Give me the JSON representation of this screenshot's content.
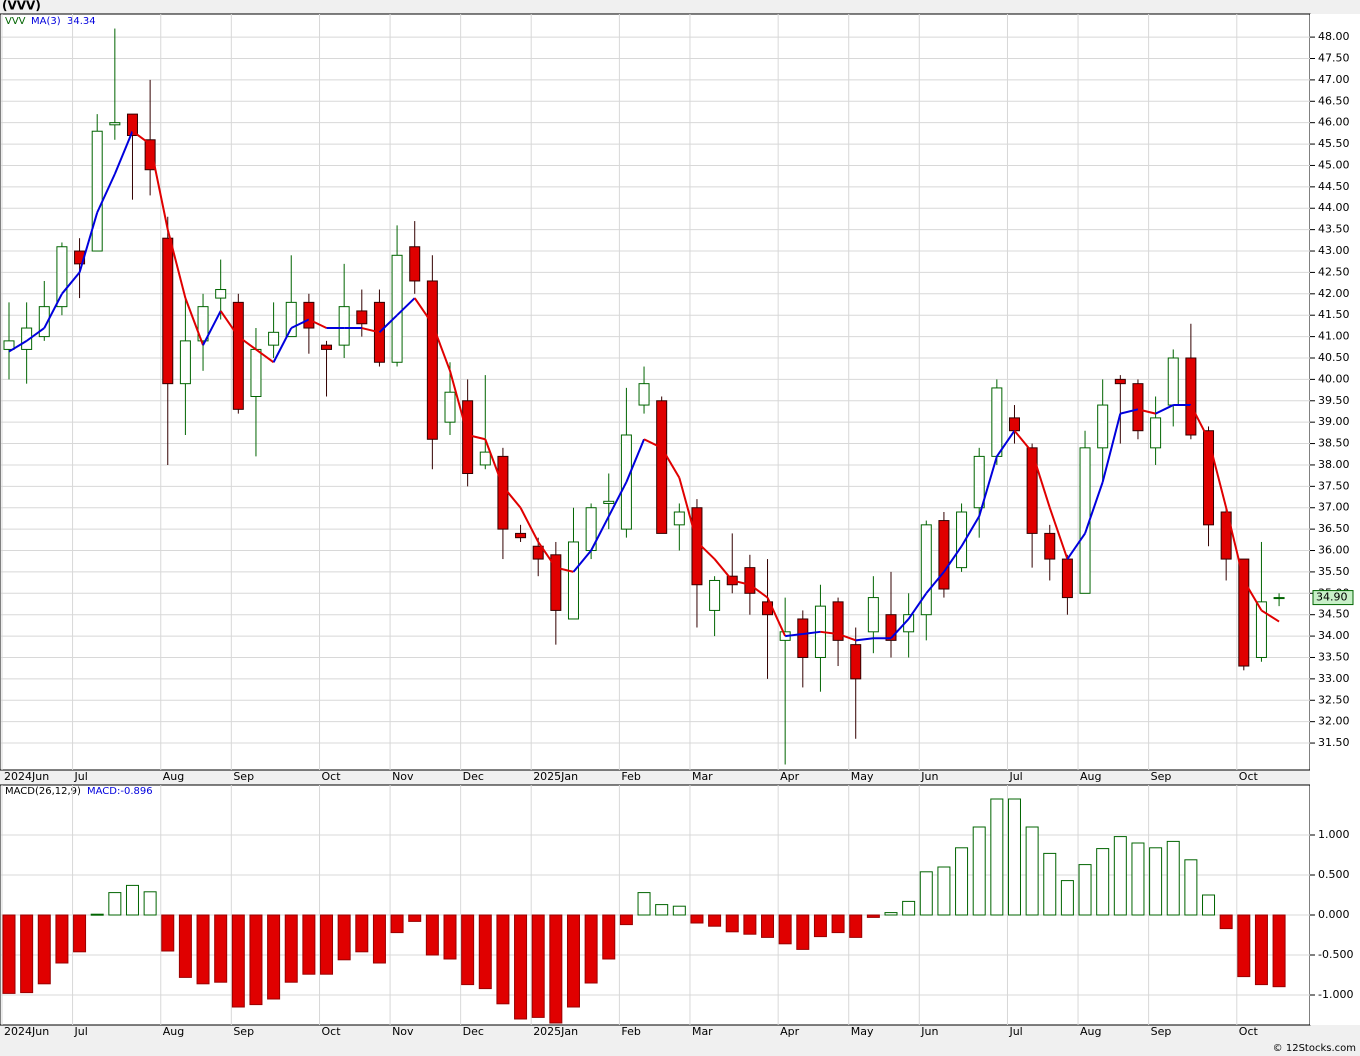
{
  "chart_data": [
    {
      "type": "candlestick",
      "title": "(VVV)",
      "symbol": "VVV",
      "categories": [
        "2024Jun",
        null,
        null,
        null,
        "Jul",
        null,
        null,
        null,
        null,
        "Aug",
        null,
        null,
        null,
        "Sep",
        null,
        null,
        null,
        null,
        "Oct",
        null,
        null,
        null,
        "Nov",
        null,
        null,
        null,
        "Dec",
        null,
        null,
        null,
        "2025Jan",
        null,
        null,
        null,
        null,
        "Feb",
        null,
        null,
        null,
        "Mar",
        null,
        null,
        null,
        null,
        "Apr",
        null,
        null,
        null,
        "May",
        null,
        null,
        null,
        "Jun",
        null,
        null,
        null,
        null,
        "Jul",
        null,
        null,
        null,
        "Aug",
        null,
        null,
        null,
        "Sep",
        null,
        null,
        null,
        null,
        "Oct",
        null,
        null
      ],
      "open": [
        40.7,
        40.7,
        41.0,
        41.7,
        43.0,
        43.0,
        45.95,
        46.2,
        45.6,
        43.3,
        39.9,
        40.9,
        41.9,
        41.8,
        39.6,
        40.8,
        41.0,
        41.8,
        40.8,
        40.8,
        41.6,
        41.8,
        40.4,
        43.1,
        42.3,
        39.0,
        39.5,
        38.0,
        38.2,
        36.4,
        36.1,
        35.9,
        34.4,
        36.0,
        37.1,
        36.5,
        39.4,
        39.5,
        36.6,
        37.0,
        34.6,
        35.4,
        35.6,
        34.8,
        33.9,
        34.4,
        33.5,
        34.8,
        33.8,
        34.1,
        34.5,
        34.1,
        34.5,
        36.7,
        35.6,
        37.0,
        38.2,
        39.1,
        38.4,
        36.4,
        35.8,
        35.0,
        38.4,
        40.0,
        39.9,
        38.4,
        39.4,
        40.5,
        38.8,
        36.9,
        35.8,
        33.5,
        34.9
      ],
      "high": [
        41.8,
        41.8,
        42.3,
        43.2,
        43.3,
        46.2,
        48.2,
        46.2,
        47.0,
        43.8,
        41.9,
        42.0,
        42.8,
        42.0,
        41.2,
        41.8,
        42.9,
        42.0,
        40.9,
        42.7,
        42.1,
        42.1,
        43.6,
        43.7,
        42.9,
        40.4,
        40.0,
        40.1,
        38.4,
        36.6,
        36.3,
        36.2,
        37.0,
        37.1,
        37.8,
        39.8,
        40.3,
        39.6,
        37.1,
        37.2,
        35.4,
        36.4,
        35.9,
        35.8,
        34.9,
        34.6,
        35.2,
        34.9,
        34.2,
        35.4,
        35.5,
        35.0,
        36.7,
        36.9,
        37.1,
        38.4,
        40.0,
        39.4,
        38.5,
        36.6,
        35.9,
        38.8,
        40.0,
        40.1,
        40.0,
        39.6,
        40.7,
        41.3,
        38.9,
        37.0,
        35.8,
        36.2,
        35.0
      ],
      "low": [
        40.0,
        39.9,
        40.9,
        41.5,
        41.9,
        43.0,
        45.6,
        44.2,
        44.3,
        38.0,
        38.7,
        40.2,
        41.4,
        39.2,
        38.2,
        40.5,
        41.0,
        40.6,
        39.6,
        40.5,
        41.0,
        40.3,
        40.3,
        42.0,
        37.9,
        38.7,
        37.5,
        37.9,
        35.8,
        36.2,
        35.4,
        33.8,
        34.4,
        35.8,
        36.5,
        36.3,
        39.2,
        36.4,
        36.0,
        34.2,
        34.0,
        35.0,
        34.5,
        33.0,
        31.0,
        32.8,
        32.7,
        33.3,
        31.6,
        33.6,
        33.5,
        33.5,
        33.9,
        34.9,
        35.5,
        36.3,
        38.0,
        38.5,
        35.6,
        35.3,
        34.5,
        35.0,
        37.6,
        38.5,
        38.6,
        38.0,
        38.9,
        38.6,
        36.1,
        35.3,
        33.2,
        33.4,
        34.7
      ],
      "close": [
        40.9,
        41.2,
        41.7,
        43.1,
        42.7,
        45.8,
        46.0,
        45.7,
        44.9,
        39.9,
        40.9,
        41.7,
        42.1,
        39.3,
        40.7,
        41.1,
        41.8,
        41.2,
        40.7,
        41.7,
        41.3,
        40.4,
        42.9,
        42.3,
        38.6,
        39.7,
        37.8,
        38.3,
        36.5,
        36.3,
        35.8,
        34.6,
        36.2,
        37.0,
        37.15,
        38.7,
        39.9,
        36.4,
        36.9,
        35.2,
        35.3,
        35.2,
        35.0,
        34.5,
        34.1,
        33.5,
        34.7,
        33.9,
        33.0,
        34.9,
        33.9,
        34.5,
        36.6,
        35.1,
        36.9,
        38.2,
        39.8,
        38.8,
        36.4,
        35.8,
        34.9,
        38.4,
        39.4,
        39.9,
        38.8,
        39.1,
        40.5,
        38.7,
        36.6,
        35.8,
        33.3,
        34.8,
        34.9
      ],
      "last_price_label": "34.90",
      "up_color": "#006400",
      "down_color": "#e00000",
      "ma": {
        "name": "MA(3)",
        "value_label": "34.34",
        "up_color": "#0000dd",
        "down_color": "#e00000",
        "values": [
          40.65,
          40.9,
          41.2,
          42.0,
          42.5,
          43.9,
          44.8,
          45.8,
          45.5,
          43.5,
          41.9,
          40.8,
          41.6,
          41.0,
          40.7,
          40.4,
          41.2,
          41.4,
          41.2,
          41.2,
          41.2,
          41.1,
          41.5,
          41.9,
          41.3,
          40.2,
          38.7,
          38.6,
          37.5,
          37.0,
          36.2,
          35.6,
          35.5,
          36.0,
          36.8,
          37.6,
          38.6,
          38.4,
          37.7,
          36.2,
          35.8,
          35.3,
          35.2,
          34.9,
          34.0,
          34.05,
          34.1,
          34.05,
          33.9,
          33.95,
          33.95,
          34.4,
          35.0,
          35.5,
          36.1,
          36.8,
          38.2,
          38.8,
          38.3,
          37.0,
          35.8,
          36.4,
          37.6,
          39.2,
          39.3,
          39.2,
          39.4,
          39.4,
          38.6,
          37.0,
          35.3,
          34.6,
          34.34
        ]
      },
      "ylim": [
        30.87,
        48.54
      ],
      "yticks": [
        {
          "value": 31.5,
          "label": "31.50"
        },
        {
          "value": 32,
          "label": "32.00"
        },
        {
          "value": 32.5,
          "label": "32.50"
        },
        {
          "value": 33,
          "label": "33.00"
        },
        {
          "value": 33.5,
          "label": "33.50"
        },
        {
          "value": 34,
          "label": "34.00"
        },
        {
          "value": 34.5,
          "label": "34.50"
        },
        {
          "value": 35,
          "label": "35.00"
        },
        {
          "value": 35.5,
          "label": "35.50"
        },
        {
          "value": 36,
          "label": "36.00"
        },
        {
          "value": 36.5,
          "label": "36.50"
        },
        {
          "value": 37,
          "label": "37.00"
        },
        {
          "value": 37.5,
          "label": "37.50"
        },
        {
          "value": 38,
          "label": "38.00"
        },
        {
          "value": 38.5,
          "label": "38.50"
        },
        {
          "value": 39,
          "label": "39.00"
        },
        {
          "value": 39.5,
          "label": "39.50"
        },
        {
          "value": 40,
          "label": "40.00"
        },
        {
          "value": 40.5,
          "label": "40.50"
        },
        {
          "value": 41,
          "label": "41.00"
        },
        {
          "value": 41.5,
          "label": "41.50"
        },
        {
          "value": 42,
          "label": "42.00"
        },
        {
          "value": 42.5,
          "label": "42.50"
        },
        {
          "value": 43,
          "label": "43.00"
        },
        {
          "value": 43.5,
          "label": "43.50"
        },
        {
          "value": 44,
          "label": "44.00"
        },
        {
          "value": 44.5,
          "label": "44.50"
        },
        {
          "value": 45,
          "label": "45.00"
        },
        {
          "value": 45.5,
          "label": "45.50"
        },
        {
          "value": 46,
          "label": "46.00"
        },
        {
          "value": 46.5,
          "label": "46.50"
        },
        {
          "value": 47,
          "label": "47.00"
        },
        {
          "value": 47.5,
          "label": "47.50"
        },
        {
          "value": 48,
          "label": "48.00"
        }
      ],
      "grid": true
    },
    {
      "type": "bar",
      "title": "MACD(26,12,9)",
      "value_label": "MACD:-0.896",
      "categories": [
        "2024Jun",
        null,
        null,
        null,
        "Jul",
        null,
        null,
        null,
        null,
        "Aug",
        null,
        null,
        null,
        "Sep",
        null,
        null,
        null,
        null,
        "Oct",
        null,
        null,
        null,
        "Nov",
        null,
        null,
        null,
        "Dec",
        null,
        null,
        null,
        "2025Jan",
        null,
        null,
        null,
        null,
        "Feb",
        null,
        null,
        null,
        "Mar",
        null,
        null,
        null,
        null,
        "Apr",
        null,
        null,
        null,
        "May",
        null,
        null,
        null,
        "Jun",
        null,
        null,
        null,
        null,
        "Jul",
        null,
        null,
        null,
        "Aug",
        null,
        null,
        null,
        "Sep",
        null,
        null,
        null,
        null,
        "Oct",
        null,
        null
      ],
      "values": [
        -0.98,
        -0.97,
        -0.86,
        -0.6,
        -0.46,
        0.01,
        0.28,
        0.37,
        0.29,
        -0.45,
        -0.78,
        -0.86,
        -0.84,
        -1.15,
        -1.12,
        -1.05,
        -0.84,
        -0.74,
        -0.74,
        -0.56,
        -0.46,
        -0.6,
        -0.22,
        -0.08,
        -0.5,
        -0.55,
        -0.87,
        -0.92,
        -1.11,
        -1.3,
        -1.28,
        -1.35,
        -1.15,
        -0.85,
        -0.55,
        -0.12,
        0.28,
        0.13,
        0.11,
        -0.1,
        -0.14,
        -0.21,
        -0.24,
        -0.28,
        -0.36,
        -0.43,
        -0.27,
        -0.22,
        -0.28,
        -0.03,
        0.03,
        0.17,
        0.54,
        0.6,
        0.84,
        1.1,
        1.45,
        1.45,
        1.1,
        0.77,
        0.43,
        0.63,
        0.83,
        0.98,
        0.9,
        0.84,
        0.92,
        0.69,
        0.25,
        -0.17,
        -0.77,
        -0.87,
        -0.896
      ],
      "up_color": "#006400",
      "down_color": "#e00000",
      "ylim": [
        -1.375,
        1.625
      ],
      "yticks": [
        {
          "value": -1,
          "label": "-1.000"
        },
        {
          "value": -0.5,
          "label": "-0.500"
        },
        {
          "value": 0,
          "label": "0.000"
        },
        {
          "value": 0.5,
          "label": "0.500"
        },
        {
          "value": 1,
          "label": "1.000"
        }
      ],
      "grid": true
    }
  ],
  "footer": "© 12Stocks.com"
}
